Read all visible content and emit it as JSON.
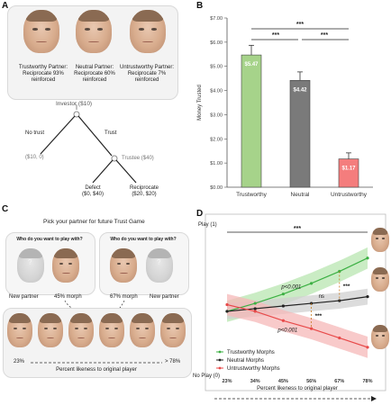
{
  "panel_labels": {
    "a": "A",
    "b": "B",
    "c": "C",
    "d": "D"
  },
  "panel_a": {
    "partners": [
      {
        "label": "Trustworthy Partner:\nReciprocate 93%\nreinforced"
      },
      {
        "label": "Neutral Partner:\nReciprocate 60%\nreinforced"
      },
      {
        "label": "Untrustworthy Partner:\nReciprocate 7%\nreinforced"
      }
    ],
    "tree": {
      "investor": "Investor ($10)",
      "no_trust": "No trust",
      "trust": "Trust",
      "no_trust_payoff": "($10, 0)",
      "trustee": "Trustee ($40)",
      "defect": "Defect\n($0, $40)",
      "reciprocate": "Reciprocate\n($20, $20)"
    }
  },
  "panel_c": {
    "title": "Pick your partner for future Trust Game",
    "q1": "Who do you want to play with?",
    "q2": "Who do you want to play with?",
    "new_partner_1": "New partner",
    "morph_1": "45% morph",
    "morph_2": "67% morph",
    "new_partner_2": "New partner",
    "scale_left": "23%",
    "scale_right": "> 78%",
    "scale_label": "Percent likeness to original player",
    "unknown": "?"
  },
  "chart_data": [
    {
      "type": "bar",
      "panel": "B",
      "categories": [
        "Trustworthy",
        "Neutral",
        "Untrustworthy"
      ],
      "values": [
        5.47,
        4.42,
        1.17
      ],
      "errors": [
        0.4,
        0.35,
        0.25
      ],
      "value_labels": [
        "$5.47",
        "$4.42",
        "$1.17"
      ],
      "colors": [
        "#a6d38a",
        "#7a7a7a",
        "#f47d7d"
      ],
      "ylabel": "Money Trusted",
      "ylim": [
        0,
        7
      ],
      "yticks": [
        "$0.00",
        "$1.00",
        "$2.00",
        "$3.00",
        "$4.00",
        "$5.00",
        "$6.00",
        "$7.00"
      ],
      "significance": [
        "***",
        "***",
        "***"
      ]
    },
    {
      "type": "line",
      "panel": "D",
      "x": [
        "23%",
        "34%",
        "45%",
        "56%",
        "67%",
        "78%"
      ],
      "xlabel": "Percent likeness to original player",
      "y_top_label": "Play (1)",
      "y_bottom_label": "No Play (0)",
      "ylim": [
        0,
        1
      ],
      "series": [
        {
          "name": "Trustworthy Morphs",
          "color": "#3cb043",
          "values": [
            0.46,
            0.52,
            0.59,
            0.67,
            0.76,
            0.86
          ]
        },
        {
          "name": "Neutral Morphs",
          "color": "#222222",
          "values": [
            0.46,
            0.48,
            0.5,
            0.52,
            0.54,
            0.57
          ]
        },
        {
          "name": "Untrustworthy Morphs",
          "color": "#e84a4a",
          "values": [
            0.51,
            0.46,
            0.39,
            0.33,
            0.26,
            0.19
          ]
        }
      ],
      "annotations": {
        "top_sig": "***",
        "p1": "p<0.001",
        "ns": "ns",
        "sig_upper": "***",
        "sig_lower": "***",
        "p2": "p<0.001"
      }
    }
  ]
}
